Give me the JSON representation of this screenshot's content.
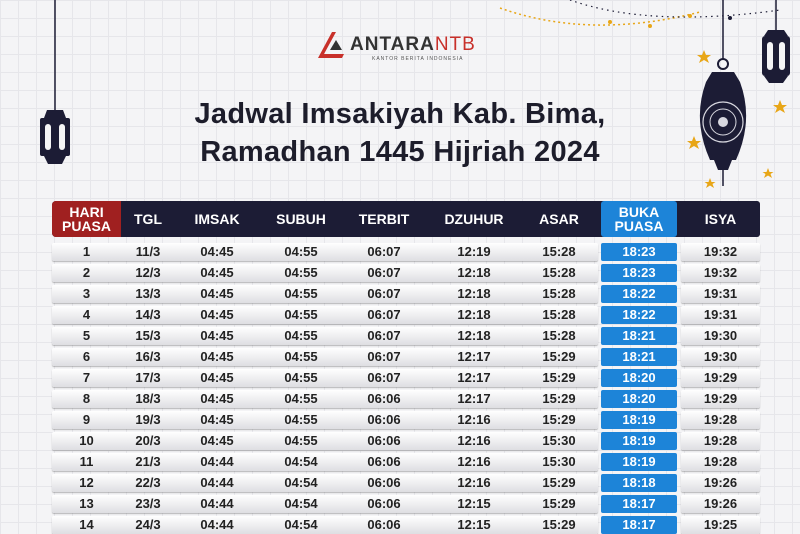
{
  "colors": {
    "header_dark": "#1c1c35",
    "header_red": "#a02020",
    "buka_blue": "#1d84d8",
    "logo_red": "#c8302a",
    "gold": "#e8a617"
  },
  "logo": {
    "name": "ANTARA",
    "suffix": "NTB",
    "tagline": "KANTOR BERITA INDONESIA"
  },
  "title": {
    "line1": "Jadwal Imsakiyah Kab. Bima,",
    "line2": "Ramadhan 1445 Hijriah 2024"
  },
  "table": {
    "headers": {
      "hari_line1": "HARI",
      "hari_line2": "PUASA",
      "tgl": "TGL",
      "imsak": "IMSAK",
      "subuh": "SUBUH",
      "terbit": "TERBIT",
      "dzuhur": "DZUHUR",
      "asar": "ASAR",
      "buka_line1": "BUKA",
      "buka_line2": "PUASA",
      "isya": "ISYA"
    },
    "rows": [
      {
        "hari": "1",
        "tgl": "11/3",
        "imsak": "04:45",
        "subuh": "04:55",
        "terbit": "06:07",
        "dzuhur": "12:19",
        "asar": "15:28",
        "buka": "18:23",
        "isya": "19:32"
      },
      {
        "hari": "2",
        "tgl": "12/3",
        "imsak": "04:45",
        "subuh": "04:55",
        "terbit": "06:07",
        "dzuhur": "12:18",
        "asar": "15:28",
        "buka": "18:23",
        "isya": "19:32"
      },
      {
        "hari": "3",
        "tgl": "13/3",
        "imsak": "04:45",
        "subuh": "04:55",
        "terbit": "06:07",
        "dzuhur": "12:18",
        "asar": "15:28",
        "buka": "18:22",
        "isya": "19:31"
      },
      {
        "hari": "4",
        "tgl": "14/3",
        "imsak": "04:45",
        "subuh": "04:55",
        "terbit": "06:07",
        "dzuhur": "12:18",
        "asar": "15:28",
        "buka": "18:22",
        "isya": "19:31"
      },
      {
        "hari": "5",
        "tgl": "15/3",
        "imsak": "04:45",
        "subuh": "04:55",
        "terbit": "06:07",
        "dzuhur": "12:18",
        "asar": "15:28",
        "buka": "18:21",
        "isya": "19:30"
      },
      {
        "hari": "6",
        "tgl": "16/3",
        "imsak": "04:45",
        "subuh": "04:55",
        "terbit": "06:07",
        "dzuhur": "12:17",
        "asar": "15:29",
        "buka": "18:21",
        "isya": "19:30"
      },
      {
        "hari": "7",
        "tgl": "17/3",
        "imsak": "04:45",
        "subuh": "04:55",
        "terbit": "06:07",
        "dzuhur": "12:17",
        "asar": "15:29",
        "buka": "18:20",
        "isya": "19:29"
      },
      {
        "hari": "8",
        "tgl": "18/3",
        "imsak": "04:45",
        "subuh": "04:55",
        "terbit": "06:06",
        "dzuhur": "12:17",
        "asar": "15:29",
        "buka": "18:20",
        "isya": "19:29"
      },
      {
        "hari": "9",
        "tgl": "19/3",
        "imsak": "04:45",
        "subuh": "04:55",
        "terbit": "06:06",
        "dzuhur": "12:16",
        "asar": "15:29",
        "buka": "18:19",
        "isya": "19:28"
      },
      {
        "hari": "10",
        "tgl": "20/3",
        "imsak": "04:45",
        "subuh": "04:55",
        "terbit": "06:06",
        "dzuhur": "12:16",
        "asar": "15:30",
        "buka": "18:19",
        "isya": "19:28"
      },
      {
        "hari": "11",
        "tgl": "21/3",
        "imsak": "04:44",
        "subuh": "04:54",
        "terbit": "06:06",
        "dzuhur": "12:16",
        "asar": "15:30",
        "buka": "18:19",
        "isya": "19:28"
      },
      {
        "hari": "12",
        "tgl": "22/3",
        "imsak": "04:44",
        "subuh": "04:54",
        "terbit": "06:06",
        "dzuhur": "12:16",
        "asar": "15:29",
        "buka": "18:18",
        "isya": "19:26"
      },
      {
        "hari": "13",
        "tgl": "23/3",
        "imsak": "04:44",
        "subuh": "04:54",
        "terbit": "06:06",
        "dzuhur": "12:15",
        "asar": "15:29",
        "buka": "18:17",
        "isya": "19:26"
      },
      {
        "hari": "14",
        "tgl": "24/3",
        "imsak": "04:44",
        "subuh": "04:54",
        "terbit": "06:06",
        "dzuhur": "12:15",
        "asar": "15:29",
        "buka": "18:17",
        "isya": "19:25"
      }
    ]
  }
}
